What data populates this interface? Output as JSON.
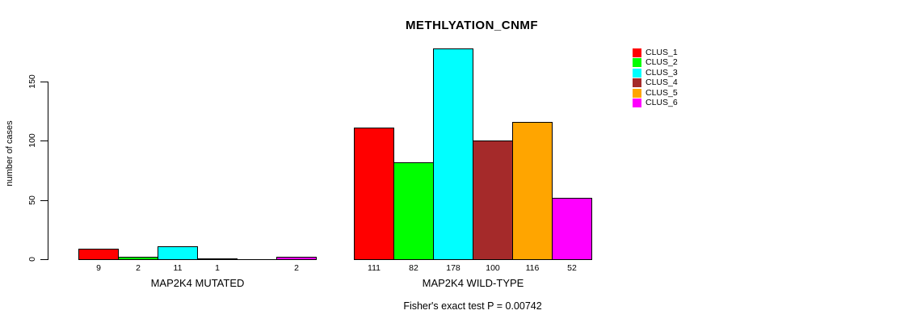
{
  "title": "METHLYATION_CNMF",
  "ylabel": "number of cases",
  "annotation": "Fisher's exact test P = 0.00742",
  "chart_data": {
    "type": "bar",
    "title": "METHLYATION_CNMF",
    "ylabel": "number of cases",
    "xlabel": "",
    "annotation": "Fisher's exact test P = 0.00742",
    "categories": [
      "MAP2K4 MUTATED",
      "MAP2K4 WILD-TYPE"
    ],
    "series": [
      {
        "name": "CLUS_1",
        "color": "#FF0000",
        "values": [
          9,
          111
        ]
      },
      {
        "name": "CLUS_2",
        "color": "#00FF00",
        "values": [
          2,
          82
        ]
      },
      {
        "name": "CLUS_3",
        "color": "#00FFFF",
        "values": [
          11,
          178
        ]
      },
      {
        "name": "CLUS_4",
        "color": "#A52A2A",
        "values": [
          1,
          100
        ]
      },
      {
        "name": "CLUS_5",
        "color": "#FFA500",
        "values": [
          0,
          116
        ]
      },
      {
        "name": "CLUS_6",
        "color": "#FF00FF",
        "values": [
          2,
          52
        ]
      }
    ],
    "yticks": [
      0,
      50,
      100,
      150
    ],
    "ylim": [
      0,
      178
    ],
    "grid": false,
    "legend_position": "right",
    "bar_label_rule": "value shown under each bar, omitted when value is 0"
  }
}
